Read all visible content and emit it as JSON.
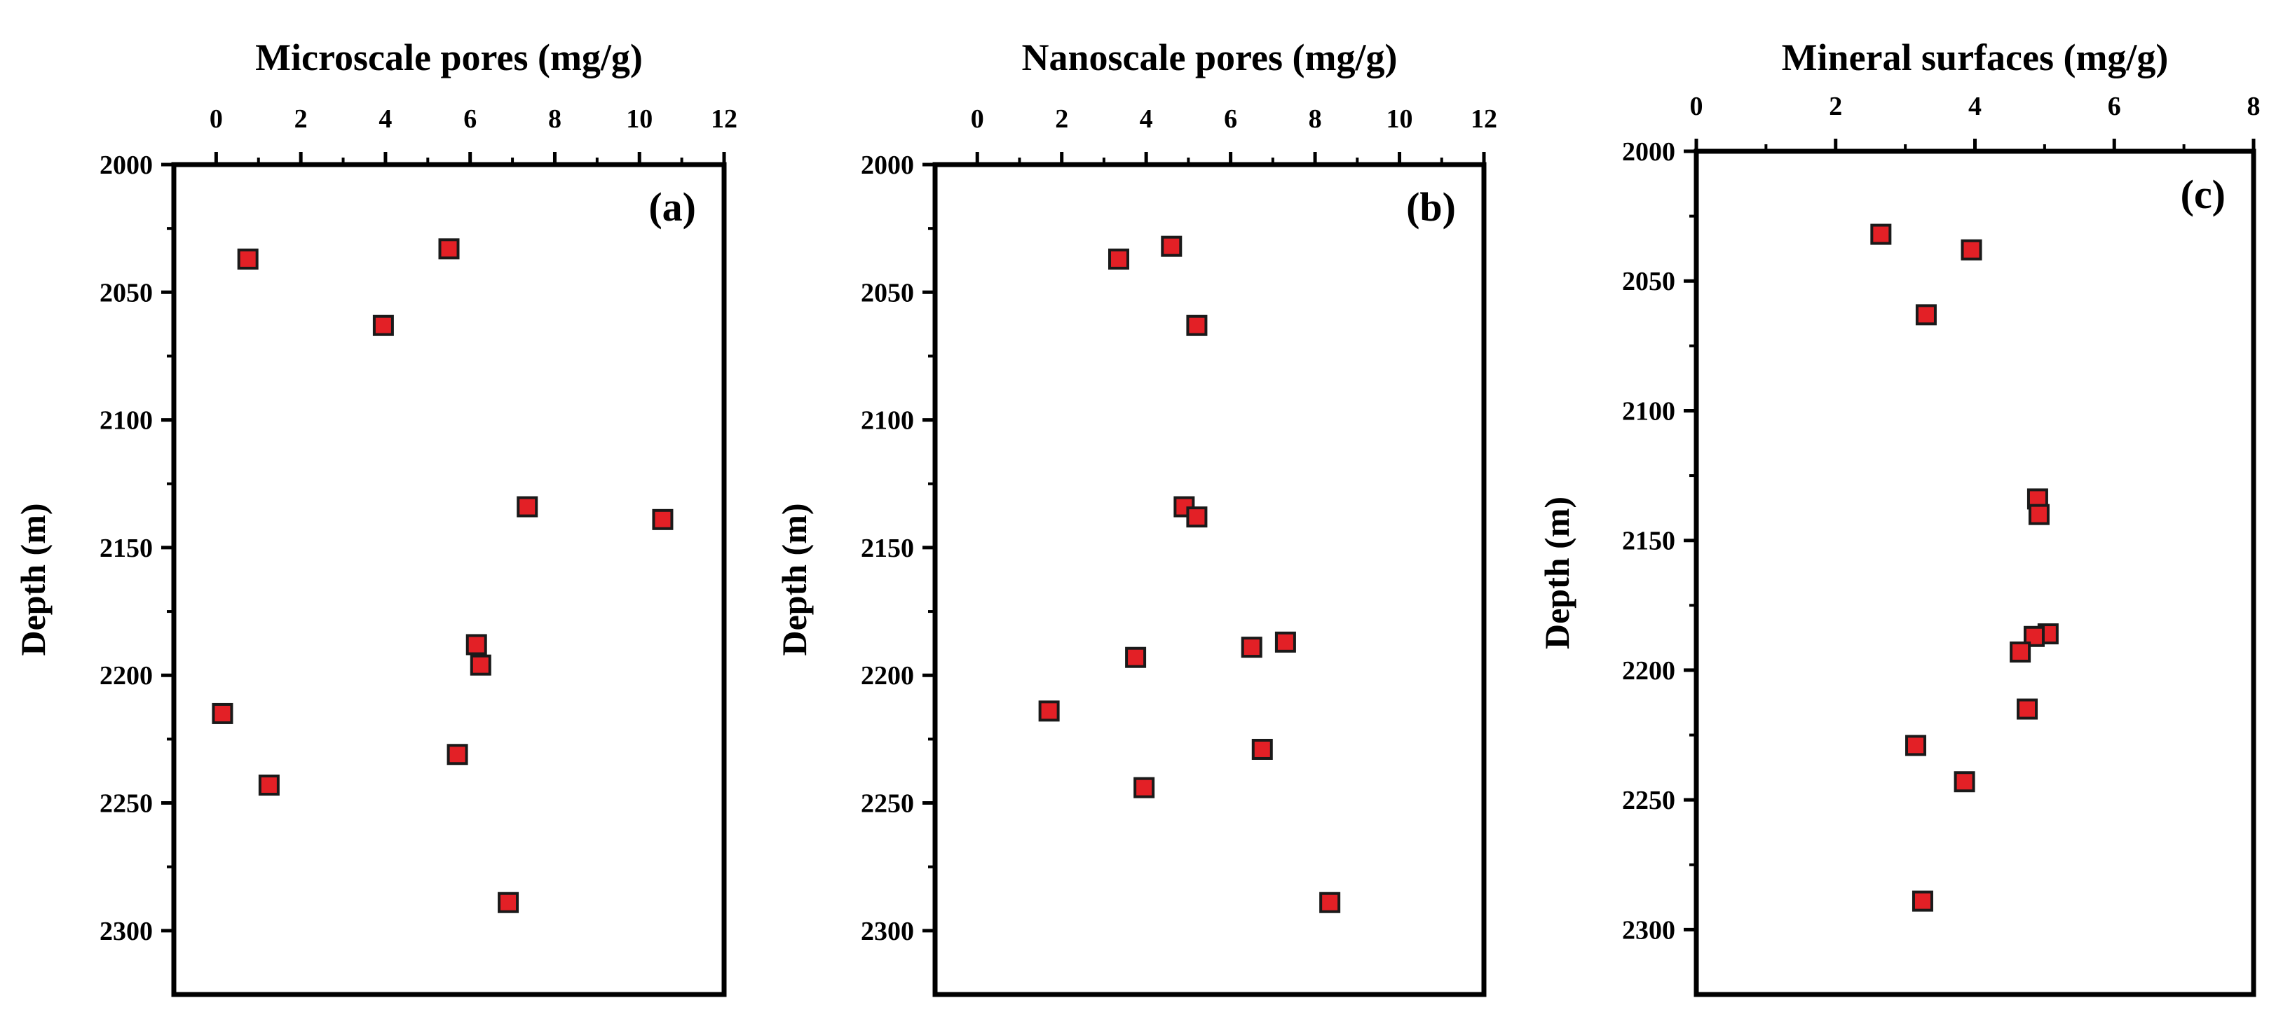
{
  "figure": {
    "marker_fill": "#e32026",
    "marker_stroke": "#1a1a1a",
    "axis_color": "#000000"
  },
  "chart_data": [
    {
      "type": "scatter",
      "panel": "(a)",
      "title": "Microscale pores (mg/g)",
      "xlabel": "Microscale pores (mg/g)",
      "ylabel": "Depth (m)",
      "xlim": [
        -1,
        12
      ],
      "ylim": [
        2000,
        2325
      ],
      "xticks": [
        0,
        2,
        4,
        6,
        8,
        10,
        12
      ],
      "yticks": [
        2000,
        2050,
        2100,
        2150,
        2200,
        2250,
        2300
      ],
      "x_axis_position": "top",
      "y_axis_inverted": true,
      "grid": false,
      "points": [
        {
          "x": 0.75,
          "y": 2037
        },
        {
          "x": 5.5,
          "y": 2033
        },
        {
          "x": 3.95,
          "y": 2063
        },
        {
          "x": 7.35,
          "y": 2134
        },
        {
          "x": 10.55,
          "y": 2139
        },
        {
          "x": 6.15,
          "y": 2188
        },
        {
          "x": 6.25,
          "y": 2196
        },
        {
          "x": 0.15,
          "y": 2215
        },
        {
          "x": 5.7,
          "y": 2231
        },
        {
          "x": 1.25,
          "y": 2243
        },
        {
          "x": 6.9,
          "y": 2289
        }
      ]
    },
    {
      "type": "scatter",
      "panel": "(b)",
      "title": "Nanoscale pores (mg/g)",
      "xlabel": "Nanoscale pores (mg/g)",
      "ylabel": "Depth (m)",
      "xlim": [
        -1,
        12
      ],
      "ylim": [
        2000,
        2325
      ],
      "xticks": [
        0,
        2,
        4,
        6,
        8,
        10,
        12
      ],
      "yticks": [
        2000,
        2050,
        2100,
        2150,
        2200,
        2250,
        2300
      ],
      "x_axis_position": "top",
      "y_axis_inverted": true,
      "grid": false,
      "points": [
        {
          "x": 3.35,
          "y": 2037
        },
        {
          "x": 4.6,
          "y": 2032
        },
        {
          "x": 5.2,
          "y": 2063
        },
        {
          "x": 4.9,
          "y": 2134
        },
        {
          "x": 5.2,
          "y": 2138
        },
        {
          "x": 7.3,
          "y": 2187
        },
        {
          "x": 6.5,
          "y": 2189
        },
        {
          "x": 3.75,
          "y": 2193
        },
        {
          "x": 1.7,
          "y": 2214
        },
        {
          "x": 6.75,
          "y": 2229
        },
        {
          "x": 3.95,
          "y": 2244
        },
        {
          "x": 8.35,
          "y": 2289
        }
      ]
    },
    {
      "type": "scatter",
      "panel": "(c)",
      "title": "Mineral surfaces (mg/g)",
      "xlabel": "Mineral surfaces (mg/g)",
      "ylabel": "Depth (m)",
      "xlim": [
        0,
        8
      ],
      "ylim": [
        2000,
        2325
      ],
      "xticks": [
        0,
        2,
        4,
        6,
        8
      ],
      "yticks": [
        2000,
        2050,
        2100,
        2150,
        2200,
        2250,
        2300
      ],
      "x_axis_position": "top",
      "y_axis_inverted": true,
      "grid": false,
      "points": [
        {
          "x": 2.65,
          "y": 2032
        },
        {
          "x": 3.95,
          "y": 2038
        },
        {
          "x": 3.3,
          "y": 2063
        },
        {
          "x": 4.9,
          "y": 2134
        },
        {
          "x": 4.92,
          "y": 2140
        },
        {
          "x": 5.05,
          "y": 2186
        },
        {
          "x": 4.85,
          "y": 2187
        },
        {
          "x": 4.65,
          "y": 2193
        },
        {
          "x": 4.75,
          "y": 2215
        },
        {
          "x": 3.15,
          "y": 2229
        },
        {
          "x": 3.85,
          "y": 2243
        },
        {
          "x": 3.25,
          "y": 2289
        }
      ]
    }
  ]
}
